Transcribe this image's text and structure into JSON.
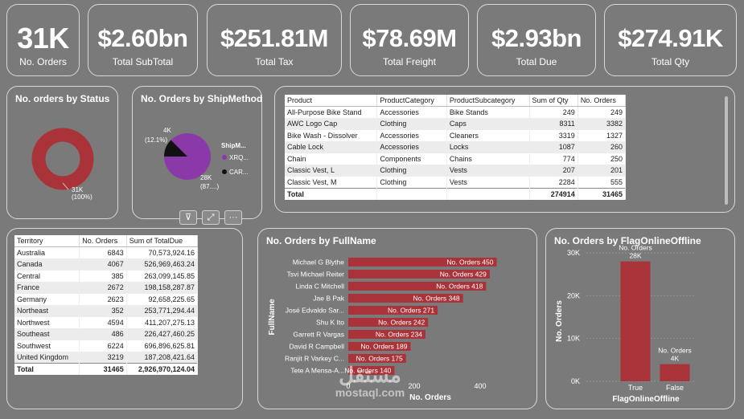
{
  "kpis": [
    {
      "value": "31K",
      "label": "No. Orders"
    },
    {
      "value": "$2.60bn",
      "label": "Total SubTotal"
    },
    {
      "value": "$251.81M",
      "label": "Total Tax"
    },
    {
      "value": "$78.69M",
      "label": "Total Freight"
    },
    {
      "value": "$2.93bn",
      "label": "Total Due"
    },
    {
      "value": "$274.91K",
      "label": "Total Qty"
    }
  ],
  "status_chart": {
    "title": "No. orders by Status",
    "data_label_value": "31K",
    "data_label_pct": "(100%)",
    "color": "#a93339"
  },
  "shipmethod_chart": {
    "title": "No. Orders by ShipMethod",
    "legend_title": "ShipM...",
    "slices": [
      {
        "name": "XRQ...",
        "value": 28000,
        "label": "28K",
        "pct": "(87....)",
        "color": "#8a3aa8"
      },
      {
        "name": "CAR...",
        "value": 4000,
        "label": "4K",
        "pct": "(12.1%)",
        "color": "#111111"
      }
    ]
  },
  "visual_header_icons": [
    "filter-icon",
    "focus-mode-icon",
    "more-options-icon"
  ],
  "visual_header_glyphs": {
    "filter": "⊽",
    "focus": "⤢",
    "more": "···"
  },
  "product_table": {
    "columns": [
      "Product",
      "ProductCategory",
      "ProductSubcategory",
      "Sum of Qty",
      "No. Orders"
    ],
    "rows": [
      [
        "All-Purpose Bike Stand",
        "Accessories",
        "Bike Stands",
        "249",
        "249"
      ],
      [
        "AWC Logo Cap",
        "Clothing",
        "Caps",
        "8311",
        "3382"
      ],
      [
        "Bike Wash - Dissolver",
        "Accessories",
        "Cleaners",
        "3319",
        "1327"
      ],
      [
        "Cable Lock",
        "Accessories",
        "Locks",
        "1087",
        "260"
      ],
      [
        "Chain",
        "Components",
        "Chains",
        "774",
        "250"
      ],
      [
        "Classic Vest, L",
        "Clothing",
        "Vests",
        "207",
        "201"
      ],
      [
        "Classic Vest, M",
        "Clothing",
        "Vests",
        "2284",
        "555"
      ]
    ],
    "total": [
      "Total",
      "",
      "",
      "274914",
      "31465"
    ]
  },
  "territory_table": {
    "columns": [
      "Territory",
      "No. Orders",
      "Sum of TotalDue"
    ],
    "rows": [
      [
        "Australia",
        "6843",
        "70,573,924.16"
      ],
      [
        "Canada",
        "4067",
        "526,969,463.24"
      ],
      [
        "Central",
        "385",
        "263,099,145.85"
      ],
      [
        "France",
        "2672",
        "198,158,287.87"
      ],
      [
        "Germany",
        "2623",
        "92,658,225.65"
      ],
      [
        "Northeast",
        "352",
        "253,771,294.44"
      ],
      [
        "Northwest",
        "4594",
        "411,207,275.13"
      ],
      [
        "Southeast",
        "486",
        "226,427,460.25"
      ],
      [
        "Southwest",
        "6224",
        "696,896,625.81"
      ],
      [
        "United Kingdom",
        "3219",
        "187,208,421.64"
      ]
    ],
    "total": [
      "Total",
      "31465",
      "2,926,970,124.04"
    ]
  },
  "fullname_chart": {
    "title": "No. Orders by FullName",
    "xlabel": "No. Orders",
    "ylabel": "FullName",
    "x_ticks": [
      "0",
      "200",
      "400"
    ],
    "bar_label_prefix": "No. Orders",
    "color": "#a93339"
  },
  "flag_chart": {
    "title": "No. Orders by FlagOnlineOffline",
    "xlabel": "FlagOnlineOffline",
    "ylabel": "No. Orders",
    "y_ticks": [
      "30K",
      "20K",
      "10K",
      "0K"
    ],
    "bar_label_prefix": "No. Orders",
    "color": "#a93339"
  },
  "watermark": {
    "arabic": "مستقل",
    "latin": "mostaql.com"
  },
  "chart_data": [
    {
      "type": "pie",
      "title": "No. orders by Status",
      "categories": [
        ""
      ],
      "values": [
        31000
      ]
    },
    {
      "type": "pie",
      "title": "No. Orders by ShipMethod",
      "categories": [
        "XRQ...",
        "CAR..."
      ],
      "values": [
        28000,
        4000
      ]
    },
    {
      "type": "bar",
      "title": "No. Orders by FullName",
      "xlabel": "No. Orders",
      "ylabel": "FullName",
      "categories": [
        "Michael G Blythe",
        "Tsvi Michael Reiter",
        "Linda C Mitchell",
        "Jae B Pak",
        "José Edvaldo Sar...",
        "Shu K Ito",
        "Garrett R Vargas",
        "David R Campbell",
        "Ranjit R Varkey C...",
        "Tete A Mensa-A..."
      ],
      "values": [
        450,
        429,
        418,
        348,
        271,
        242,
        234,
        189,
        175,
        140
      ],
      "xlim": [
        0,
        500
      ]
    },
    {
      "type": "bar",
      "title": "No. Orders by FlagOnlineOffline",
      "xlabel": "FlagOnlineOffline",
      "ylabel": "No. Orders",
      "categories": [
        "True",
        "False"
      ],
      "values": [
        28000,
        4000
      ],
      "value_labels": [
        "28K",
        "4K"
      ],
      "ylim": [
        0,
        30000
      ]
    }
  ]
}
